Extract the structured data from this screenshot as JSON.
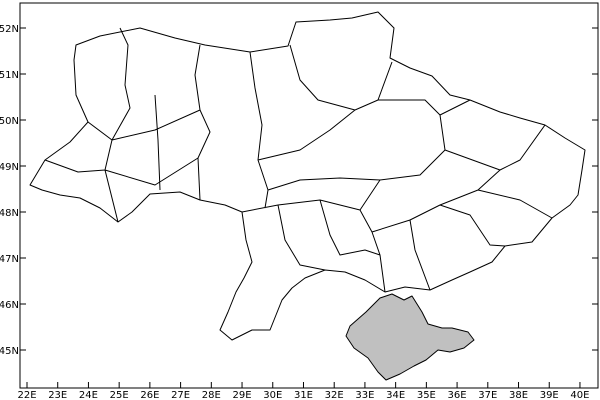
{
  "map": {
    "type": "regional boundary map",
    "x_ticks": [
      "22E",
      "23E",
      "24E",
      "25E",
      "26E",
      "27E",
      "28E",
      "29E",
      "30E",
      "31E",
      "32E",
      "33E",
      "34E",
      "35E",
      "36E",
      "37E",
      "38E",
      "39E",
      "40E"
    ],
    "y_ticks": [
      "45N",
      "46N",
      "47N",
      "48N",
      "49N",
      "50N",
      "51N",
      "52N"
    ],
    "highlighted_region_color": "#c0c0c0",
    "boundary_color": "#000000",
    "background_color": "#ffffff"
  }
}
